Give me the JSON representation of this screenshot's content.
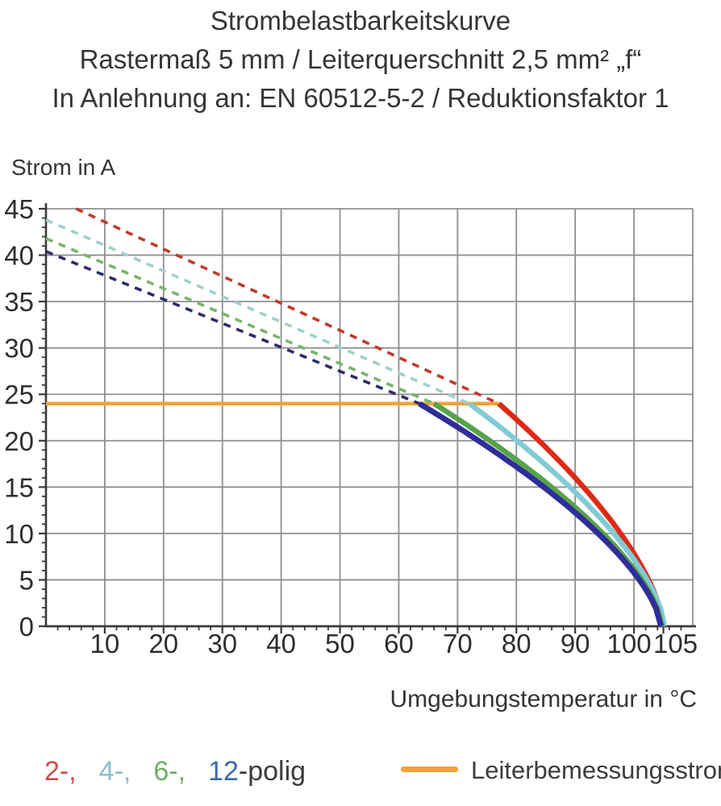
{
  "title": {
    "line1": "Strombelastbarkeitskurve",
    "line2": "Rastermaß 5 mm / Leiterquerschnitt 2,5 mm² „f“",
    "line3": "In Anlehnung an: EN 60512-5-2 / Reduktionsfaktor 1"
  },
  "chart_data": {
    "type": "line",
    "ylabel": "Strom in A",
    "xlabel": "Umgebungstemperatur in °C",
    "xlim": [
      0,
      110
    ],
    "ylim": [
      0,
      45
    ],
    "x_ticks": [
      10,
      20,
      30,
      40,
      50,
      60,
      70,
      80,
      90,
      100,
      105
    ],
    "x_gridline_step": 10,
    "x_minor_tick_step": 2,
    "y_ticks": [
      0,
      5,
      10,
      15,
      20,
      25,
      30,
      35,
      40,
      45
    ],
    "y_gridline_step": 5,
    "y_minor_tick_step": 1,
    "grid": true,
    "colors": {
      "grid": "#8f8f8f",
      "axis": "#3a3a3a",
      "tick_text": "#2e2e2e"
    },
    "rated_current": {
      "label": "Leiterbemessungsstrom",
      "value_a": 24,
      "x_start_c": 0,
      "x_end_c": 77,
      "color": "#f2a235"
    },
    "curve_exponent": 0.65,
    "legend_suffix": "-polig",
    "series": [
      {
        "name": "2-polig",
        "legend_label": "2-,",
        "solid_color": "#dd2a16",
        "dash_color": "#c03a2b",
        "legend_color": "#c8504a",
        "current_at_0c": 46.5,
        "meets_rated_at_c": 77,
        "zero_current_at_c": 105.0,
        "points": [
          [
            5.1,
            45
          ],
          [
            10,
            43.6
          ],
          [
            20,
            40.7
          ],
          [
            30,
            37.7
          ],
          [
            40,
            34.8
          ],
          [
            50,
            31.9
          ],
          [
            60,
            29.0
          ],
          [
            70,
            26.0
          ],
          [
            77,
            24
          ],
          [
            85,
            19.3
          ],
          [
            90,
            16.0
          ],
          [
            95,
            12.3
          ],
          [
            100,
            7.8
          ],
          [
            105,
            0
          ]
        ]
      },
      {
        "name": "4-polig",
        "legend_label": "4-,",
        "solid_color": "#82cbd4",
        "dash_color": "#9fd0cc",
        "legend_color": "#8ac0ce",
        "current_at_0c": 43.8,
        "meets_rated_at_c": 72,
        "zero_current_at_c": 105.2,
        "points": [
          [
            0,
            43.8
          ],
          [
            10,
            41.1
          ],
          [
            20,
            38.3
          ],
          [
            30,
            35.6
          ],
          [
            40,
            32.8
          ],
          [
            50,
            30.1
          ],
          [
            60,
            27.3
          ],
          [
            70,
            24.6
          ],
          [
            72,
            24
          ],
          [
            80,
            20.0
          ],
          [
            90,
            14.4
          ],
          [
            100,
            7.0
          ],
          [
            105.2,
            0
          ]
        ]
      },
      {
        "name": "6-polig",
        "legend_label": "6-,",
        "solid_color": "#56a348",
        "dash_color": "#79b469",
        "legend_color": "#6fae67",
        "current_at_0c": 41.8,
        "meets_rated_at_c": 66,
        "zero_current_at_c": 104.8,
        "points": [
          [
            0,
            41.8
          ],
          [
            10,
            39.1
          ],
          [
            20,
            36.4
          ],
          [
            30,
            33.8
          ],
          [
            40,
            31.1
          ],
          [
            50,
            28.4
          ],
          [
            60,
            25.7
          ],
          [
            66,
            24
          ],
          [
            80,
            18.0
          ],
          [
            90,
            12.8
          ],
          [
            100,
            6.0
          ],
          [
            104.8,
            0
          ]
        ]
      },
      {
        "name": "12-polig",
        "legend_label": "12",
        "solid_color": "#2f2d99",
        "dash_color": "#2c2c68",
        "legend_color": "#3c6aa8",
        "current_at_0c": 40.4,
        "meets_rated_at_c": 63.5,
        "zero_current_at_c": 104.6,
        "points": [
          [
            0,
            40.4
          ],
          [
            10,
            37.8
          ],
          [
            20,
            35.2
          ],
          [
            30,
            32.7
          ],
          [
            40,
            30.1
          ],
          [
            50,
            27.5
          ],
          [
            60,
            24.9
          ],
          [
            63.5,
            24
          ],
          [
            80,
            17.1
          ],
          [
            90,
            12.1
          ],
          [
            100,
            5.5
          ],
          [
            104.6,
            0
          ]
        ]
      }
    ]
  }
}
